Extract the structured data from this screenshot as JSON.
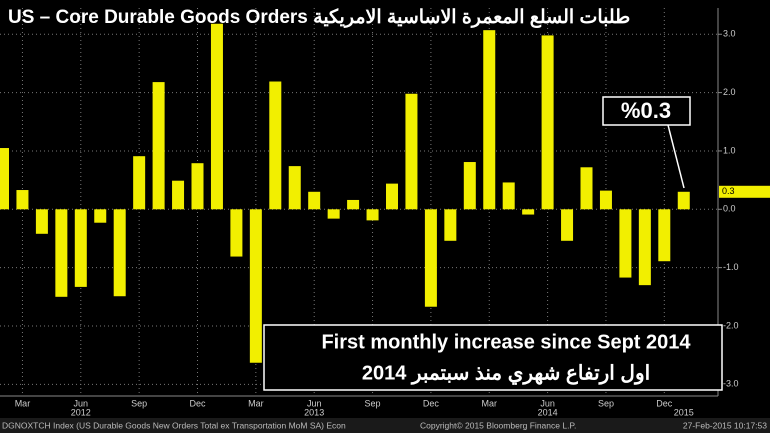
{
  "chart_data": {
    "type": "bar",
    "title": "US – Core Durable Goods Orders طلبات السلع المعمرة الاساسية الامريكية",
    "categories": [
      null,
      "Mar",
      null,
      null,
      "Jun",
      null,
      null,
      "Sep",
      null,
      null,
      "Dec",
      null,
      null,
      "Mar",
      null,
      null,
      "Jun",
      null,
      null,
      "Sep",
      null,
      null,
      "Dec",
      null,
      null,
      "Mar",
      null,
      null,
      "Jun",
      null,
      null,
      "Sep",
      null,
      null,
      "Dec",
      null
    ],
    "year_categories": [
      null,
      null,
      null,
      null,
      "2012",
      null,
      null,
      null,
      null,
      null,
      null,
      null,
      null,
      null,
      null,
      null,
      "2013",
      null,
      null,
      null,
      null,
      null,
      null,
      null,
      null,
      null,
      null,
      null,
      "2014",
      null,
      null,
      null,
      null,
      null,
      null,
      "2015"
    ],
    "values": [
      1.05,
      0.33,
      -0.42,
      -1.5,
      -1.33,
      -0.23,
      -1.49,
      0.91,
      2.18,
      0.49,
      0.79,
      3.18,
      -0.81,
      -2.63,
      2.19,
      0.74,
      0.3,
      -0.16,
      0.16,
      -0.19,
      0.44,
      1.98,
      -1.67,
      -0.54,
      0.81,
      3.07,
      0.46,
      -0.09,
      2.98,
      -0.54,
      0.72,
      0.32,
      -1.17,
      -1.3,
      -0.89,
      0.3
    ],
    "color": "#f2ef00",
    "ylim": [
      -3.2,
      3.45
    ],
    "yticks": [
      {
        "value": -3,
        "label": "-3.0"
      },
      {
        "value": -2,
        "label": "-2.0"
      },
      {
        "value": -1,
        "label": "-1.0"
      },
      {
        "value": 0,
        "label": "0.0"
      },
      {
        "value": 1,
        "label": "1.0"
      },
      {
        "value": 2,
        "label": "2.0"
      },
      {
        "value": 3,
        "label": "3.0"
      }
    ],
    "grid": true,
    "callout": "%0.3",
    "annotation_lines": [
      "First monthly increase since Sept 2014",
      "اول ارتفاع شهري منذ سبتمبر 2014"
    ],
    "footer_left": "DGNOXTCH Index (US Durable Goods New Orders Total ex Transportation MoM SA) Econ",
    "footer_center": "Copyright© 2015 Bloomberg Finance L.P.",
    "footer_right": "27-Feb-2015 10:17:53"
  }
}
